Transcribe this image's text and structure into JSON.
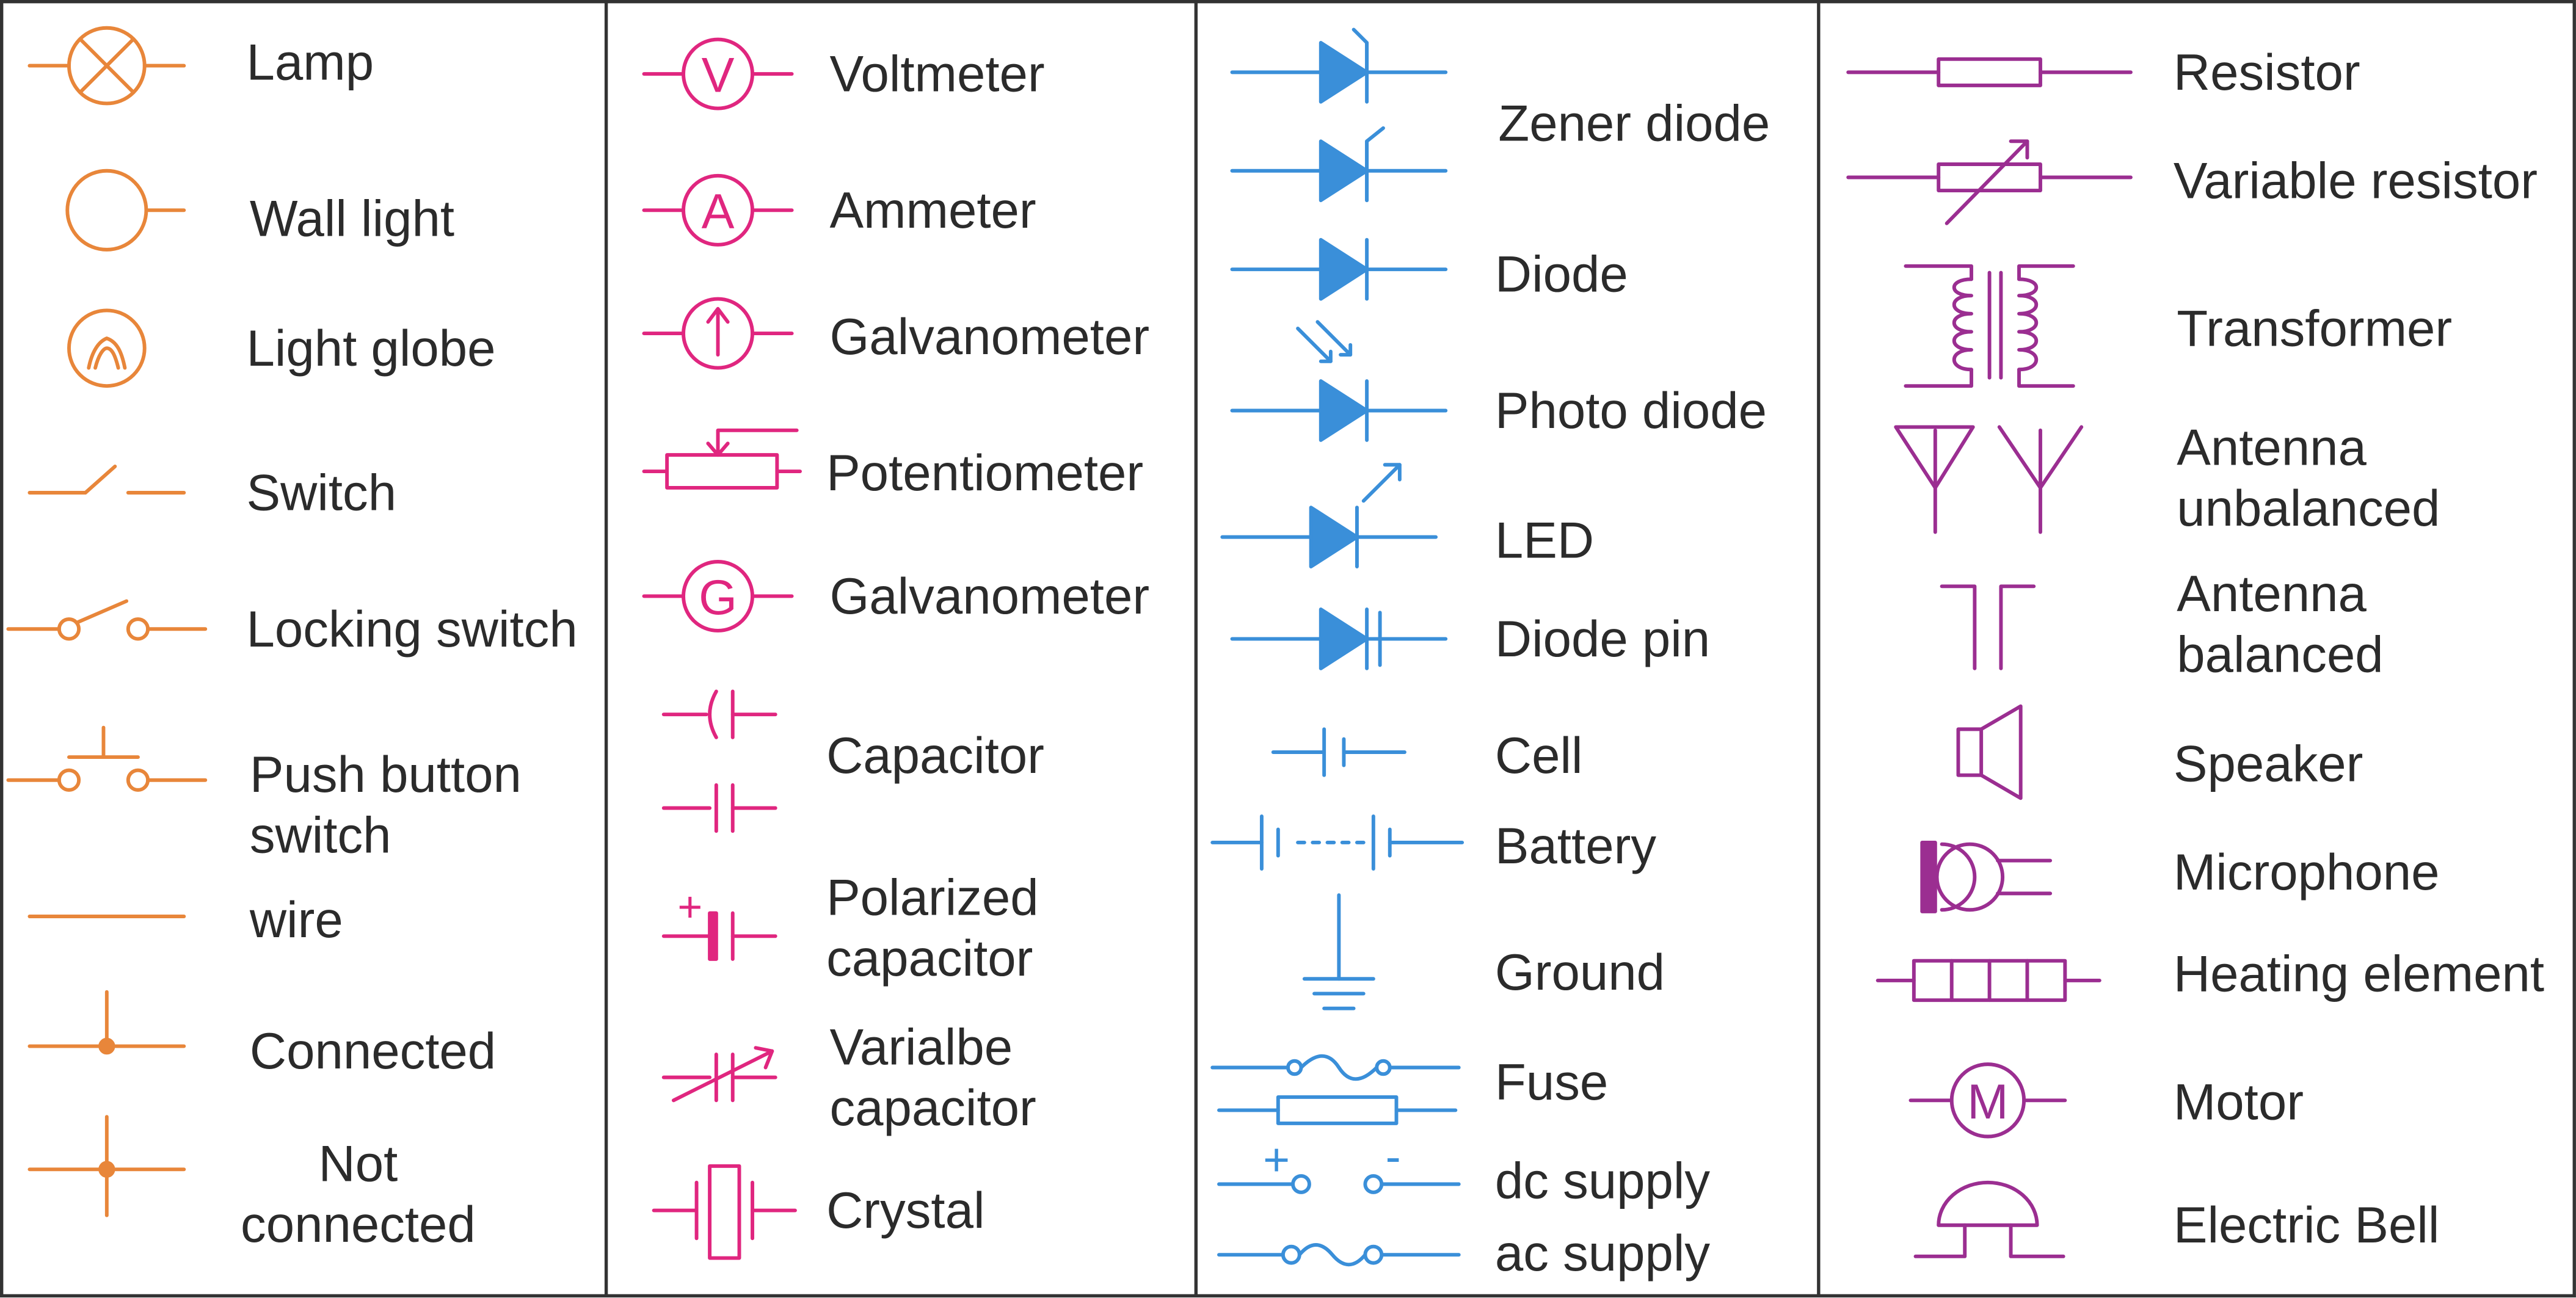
{
  "colors": {
    "orange": "#E8863A",
    "magenta": "#E0267F",
    "blue": "#3A8FD9",
    "purple": "#9B2E91",
    "border": "#333333",
    "text": "#2B2B2B"
  },
  "columns": [
    {
      "name": "column-1",
      "color_key": "orange",
      "items": [
        {
          "id": "lamp",
          "label": "Lamp"
        },
        {
          "id": "wall-light",
          "label": "Wall light"
        },
        {
          "id": "light-globe",
          "label": "Light globe"
        },
        {
          "id": "switch",
          "label": "Switch"
        },
        {
          "id": "locking-switch",
          "label": "Locking switch"
        },
        {
          "id": "push-button-switch",
          "label": "Push button\nswitch"
        },
        {
          "id": "wire",
          "label": "wire"
        },
        {
          "id": "connected",
          "label": "Connected"
        },
        {
          "id": "not-connected",
          "label": "Not\nconnected"
        }
      ]
    },
    {
      "name": "column-2",
      "color_key": "magenta",
      "items": [
        {
          "id": "voltmeter",
          "label": "Voltmeter",
          "glyph": "V"
        },
        {
          "id": "ammeter",
          "label": "Ammeter",
          "glyph": "A"
        },
        {
          "id": "galvanometer-arrow",
          "label": "Galvanometer"
        },
        {
          "id": "potentiometer",
          "label": "Potentiometer"
        },
        {
          "id": "galvanometer-g",
          "label": "Galvanometer",
          "glyph": "G"
        },
        {
          "id": "capacitor",
          "label": "Capacitor"
        },
        {
          "id": "polarized-capacitor",
          "label": "Polarized\ncapacitor",
          "glyph": "+"
        },
        {
          "id": "variable-capacitor",
          "label": "Varialbe\ncapacitor"
        },
        {
          "id": "crystal",
          "label": "Crystal"
        }
      ]
    },
    {
      "name": "column-3",
      "color_key": "blue",
      "items": [
        {
          "id": "zener-diode",
          "label": "Zener diode"
        },
        {
          "id": "diode",
          "label": "Diode"
        },
        {
          "id": "photo-diode",
          "label": "Photo diode"
        },
        {
          "id": "led",
          "label": "LED"
        },
        {
          "id": "diode-pin",
          "label": "Diode pin"
        },
        {
          "id": "cell",
          "label": "Cell"
        },
        {
          "id": "battery",
          "label": "Battery"
        },
        {
          "id": "ground",
          "label": "Ground"
        },
        {
          "id": "fuse",
          "label": "Fuse"
        },
        {
          "id": "dc-supply",
          "label": "dc supply",
          "glyph_plus": "+",
          "glyph_minus": "-"
        },
        {
          "id": "ac-supply",
          "label": "ac supply"
        }
      ]
    },
    {
      "name": "column-4",
      "color_key": "purple",
      "items": [
        {
          "id": "resistor",
          "label": "Resistor"
        },
        {
          "id": "variable-resistor",
          "label": "Variable resistor"
        },
        {
          "id": "transformer",
          "label": "Transformer"
        },
        {
          "id": "antenna-unbalanced",
          "label": "Antenna\nunbalanced"
        },
        {
          "id": "antenna-balanced",
          "label": "Antenna\nbalanced"
        },
        {
          "id": "speaker",
          "label": "Speaker"
        },
        {
          "id": "microphone",
          "label": "Microphone"
        },
        {
          "id": "heating-element",
          "label": "Heating element"
        },
        {
          "id": "motor",
          "label": "Motor",
          "glyph": "M"
        },
        {
          "id": "electric-bell",
          "label": "Electric Bell"
        }
      ]
    }
  ]
}
